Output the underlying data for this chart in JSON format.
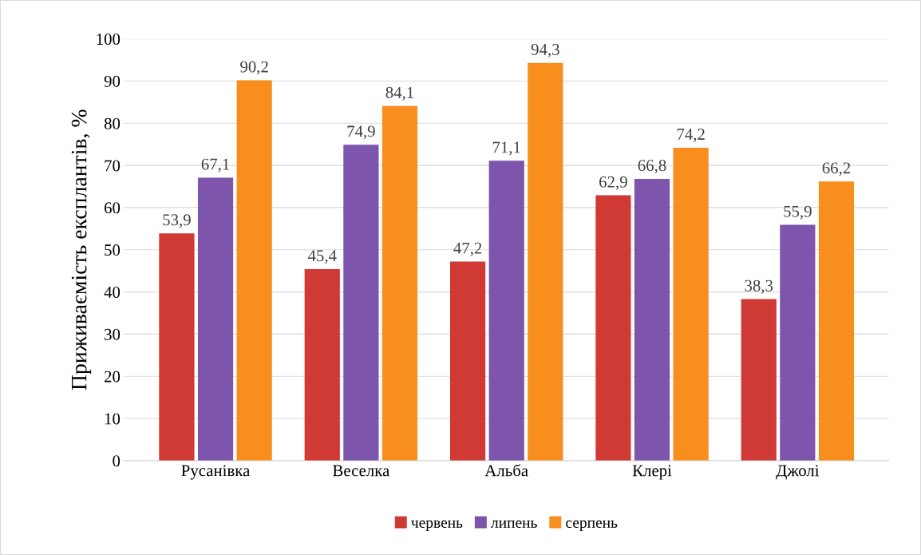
{
  "chart_data": {
    "type": "bar",
    "ylabel": "Приживаємість експлантів, %",
    "categories": [
      "Русанівка",
      "Веселка",
      "Альба",
      "Клері",
      "Джолі"
    ],
    "series": [
      {
        "name": "червень",
        "color": "#d03a34",
        "values": [
          53.9,
          45.4,
          47.2,
          62.9,
          38.3
        ],
        "value_labels": [
          "53,9",
          "45,4",
          "47,2",
          "62,9",
          "38,3"
        ]
      },
      {
        "name": "липень",
        "color": "#7d55ac",
        "values": [
          67.1,
          74.9,
          71.1,
          66.8,
          55.9
        ],
        "value_labels": [
          "67,1",
          "74,9",
          "71,1",
          "66,8",
          "55,9"
        ]
      },
      {
        "name": "серпень",
        "color": "#f78e1e",
        "values": [
          90.2,
          84.1,
          94.3,
          74.2,
          66.2
        ],
        "value_labels": [
          "90,2",
          "84,1",
          "94,3",
          "74,2",
          "66,2"
        ]
      }
    ],
    "ylim": [
      0,
      100
    ],
    "yticks": [
      0,
      10,
      20,
      30,
      40,
      50,
      60,
      70,
      80,
      90,
      100
    ],
    "grid": "y",
    "legend": "bottom"
  }
}
